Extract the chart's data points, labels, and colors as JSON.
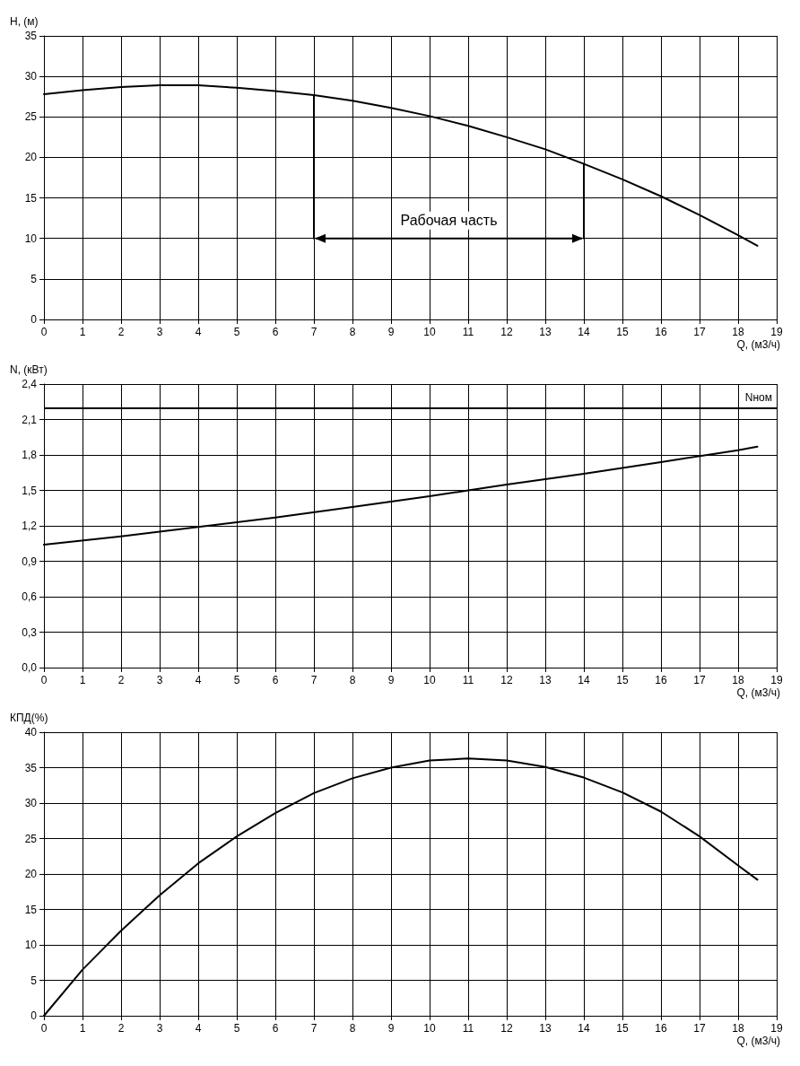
{
  "chart_data": [
    {
      "type": "line",
      "ylabel": "H, (м)",
      "xlabel": "Q, (м3/ч)",
      "xlim": [
        0,
        19
      ],
      "xticks": [
        0,
        1,
        2,
        3,
        4,
        5,
        6,
        7,
        8,
        9,
        10,
        11,
        12,
        13,
        14,
        15,
        16,
        17,
        18,
        19
      ],
      "ylim": [
        0,
        35
      ],
      "yticks": [
        0,
        5,
        10,
        15,
        20,
        25,
        30,
        35
      ],
      "grid": true,
      "marker": "none",
      "line_style": "solid",
      "series": [
        {
          "color": "#000000",
          "x": [
            0,
            1,
            2,
            3,
            3.5,
            4,
            5,
            6,
            7,
            8,
            9,
            10,
            11,
            12,
            13,
            14,
            15,
            16,
            17,
            18,
            18.5
          ],
          "values": [
            27.8,
            28.3,
            28.7,
            28.9,
            28.9,
            28.9,
            28.6,
            28.2,
            27.7,
            27.0,
            26.1,
            25.1,
            23.9,
            22.5,
            21.0,
            19.2,
            17.3,
            15.2,
            12.9,
            10.4,
            9.1
          ]
        },
        {
          "color": "#000000",
          "x": [
            7,
            7
          ],
          "values": [
            10,
            27.7
          ]
        },
        {
          "color": "#000000",
          "x": [
            14,
            14
          ],
          "values": [
            10,
            19.2
          ]
        }
      ],
      "annotations": [
        "Рабочая часть"
      ]
    },
    {
      "type": "line",
      "ylabel": "N, (кВт)",
      "xlabel": "Q, (м3/ч)",
      "xlim": [
        0,
        19
      ],
      "xticks": [
        0,
        1,
        2,
        3,
        4,
        5,
        6,
        7,
        8,
        9,
        10,
        11,
        12,
        13,
        14,
        15,
        16,
        17,
        18,
        19
      ],
      "ylim": [
        0,
        2.4
      ],
      "yticks": [
        {
          "value": 0,
          "label": "0,0"
        },
        {
          "value": 0.3,
          "label": "0,3"
        },
        {
          "value": 0.6,
          "label": "0,6"
        },
        {
          "value": 0.9,
          "label": "0,9"
        },
        {
          "value": 1.2,
          "label": "1,2"
        },
        {
          "value": 1.5,
          "label": "1,5"
        },
        {
          "value": 1.8,
          "label": "1,8"
        },
        {
          "value": 2.1,
          "label": "2,1"
        },
        {
          "value": 2.4,
          "label": "2,4"
        }
      ],
      "grid": true,
      "marker": "none",
      "line_style": "solid",
      "series": [
        {
          "color": "#000000",
          "x": [
            0,
            2,
            4,
            6,
            8,
            10,
            11,
            12,
            14,
            16,
            18,
            18.5
          ],
          "values": [
            1.04,
            1.11,
            1.19,
            1.27,
            1.36,
            1.45,
            1.5,
            1.55,
            1.64,
            1.74,
            1.84,
            1.87
          ]
        }
      ],
      "ref_lines": [
        {
          "axis": "y",
          "value": 2.2,
          "label": "Nном",
          "color": "#000000"
        }
      ]
    },
    {
      "type": "line",
      "ylabel": "КПД(%)",
      "xlabel": "Q, (м3/ч)",
      "xlim": [
        0,
        19
      ],
      "xticks": [
        0,
        1,
        2,
        3,
        4,
        5,
        6,
        7,
        8,
        9,
        10,
        11,
        12,
        13,
        14,
        15,
        16,
        17,
        18,
        19
      ],
      "ylim": [
        0,
        40
      ],
      "yticks": [
        0,
        5,
        10,
        15,
        20,
        25,
        30,
        35,
        40
      ],
      "grid": true,
      "marker": "none",
      "line_style": "solid",
      "series": [
        {
          "color": "#000000",
          "x": [
            0,
            1,
            2,
            3,
            4,
            5,
            6,
            7,
            8,
            9,
            10,
            11,
            12,
            13,
            14,
            15,
            16,
            17,
            18,
            18.5
          ],
          "values": [
            0,
            6.5,
            12,
            17,
            21.5,
            25.3,
            28.6,
            31.4,
            33.5,
            35.0,
            36.0,
            36.3,
            36.0,
            35.1,
            33.6,
            31.5,
            28.8,
            25.3,
            21.2,
            19.2
          ]
        }
      ]
    }
  ]
}
